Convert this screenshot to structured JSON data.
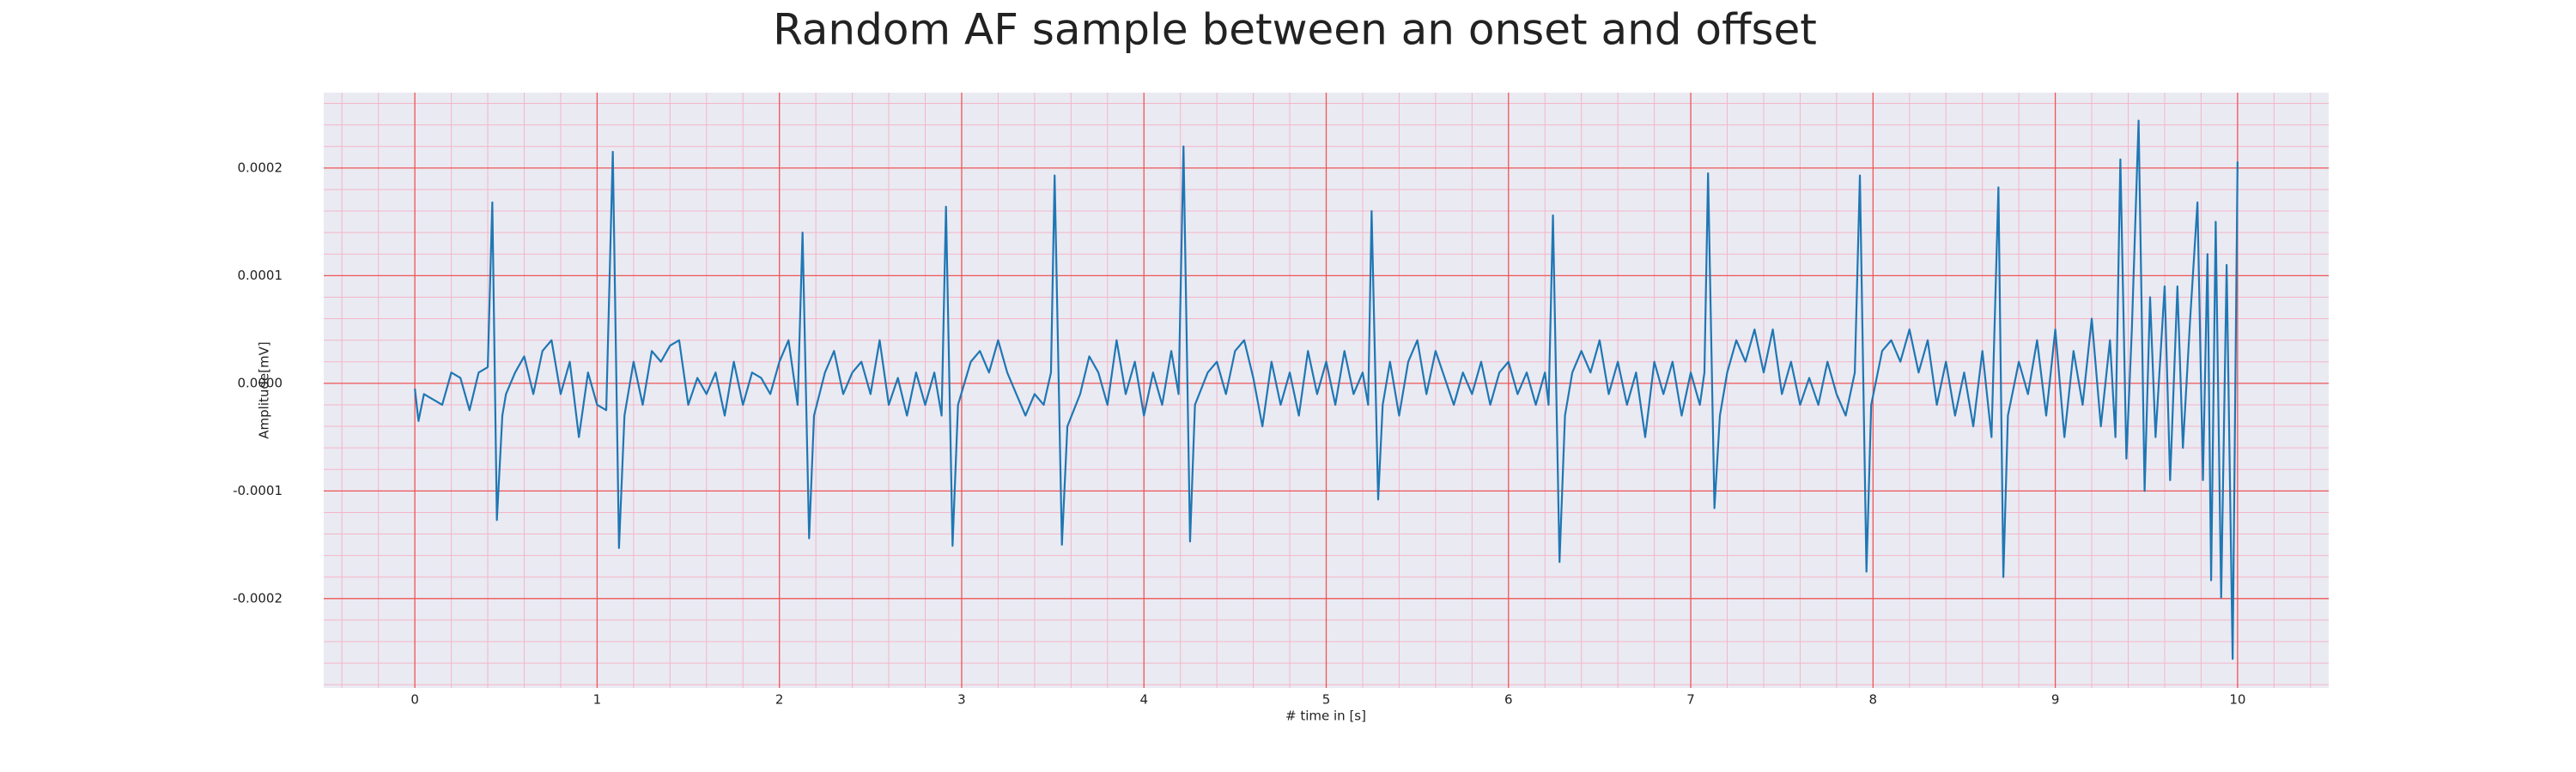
{
  "chart_data": {
    "type": "line",
    "title": "Random AF sample between an onset and offset",
    "xlabel": "# time in [s]",
    "ylabel": "Amplitude[mV]",
    "color": "#1f77b4",
    "grid": true,
    "xlim": [
      -0.5,
      10.5
    ],
    "ylim": [
      -0.000283,
      0.00027
    ],
    "xticks": [
      0,
      1,
      2,
      3,
      4,
      5,
      6,
      7,
      8,
      9,
      10
    ],
    "yticks": [
      -0.0002,
      -0.0001,
      {
        "value": 0,
        "label": "0.0000"
      },
      0.0001,
      0.0002
    ],
    "xminorticks": [
      -0.4,
      -0.2,
      0.2,
      0.4,
      0.6,
      0.8,
      1.2,
      1.4,
      1.6,
      1.8,
      2.2,
      2.4,
      2.6,
      2.8,
      3.2,
      3.4,
      3.6,
      3.8,
      4.2,
      4.4,
      4.6,
      4.8,
      5.2,
      5.4,
      5.6,
      5.8,
      6.2,
      6.4,
      6.6,
      6.8,
      7.2,
      7.4,
      7.6,
      7.8,
      8.2,
      8.4,
      8.6,
      8.8,
      9.2,
      9.4,
      9.6,
      9.8,
      10.2,
      10.4
    ],
    "yminorticks": [
      -0.00028,
      -0.00026,
      -0.00024,
      -0.00022,
      -0.00018,
      -0.00016,
      -0.00014,
      -0.00012,
      -8e-05,
      -6e-05,
      -4e-05,
      -2e-05,
      2e-05,
      4e-05,
      6e-05,
      8e-05,
      0.00012,
      0.00014,
      0.00016,
      0.00018,
      0.00022,
      0.00024,
      0.00026
    ],
    "x": [
      0,
      0.02,
      0.05,
      0.1,
      0.15,
      0.2,
      0.25,
      0.3,
      0.35,
      0.4,
      0.425,
      0.45,
      0.48,
      0.5,
      0.55,
      0.6,
      0.65,
      0.7,
      0.75,
      0.8,
      0.85,
      0.9,
      0.95,
      1.0,
      1.05,
      1.086,
      1.12,
      1.15,
      1.2,
      1.25,
      1.3,
      1.35,
      1.4,
      1.45,
      1.5,
      1.55,
      1.6,
      1.65,
      1.7,
      1.75,
      1.8,
      1.85,
      1.9,
      1.95,
      2.0,
      2.05,
      2.1,
      2.127,
      2.163,
      2.19,
      2.25,
      2.3,
      2.35,
      2.4,
      2.45,
      2.5,
      2.55,
      2.6,
      2.65,
      2.7,
      2.75,
      2.8,
      2.85,
      2.89,
      2.914,
      2.95,
      2.98,
      3.05,
      3.1,
      3.15,
      3.2,
      3.25,
      3.3,
      3.35,
      3.4,
      3.45,
      3.49,
      3.51,
      3.55,
      3.58,
      3.65,
      3.7,
      3.75,
      3.8,
      3.85,
      3.9,
      3.95,
      4.0,
      4.05,
      4.1,
      4.15,
      4.19,
      4.217,
      4.253,
      4.28,
      4.35,
      4.4,
      4.45,
      4.5,
      4.55,
      4.6,
      4.65,
      4.7,
      4.75,
      4.8,
      4.85,
      4.9,
      4.95,
      5.0,
      5.05,
      5.1,
      5.15,
      5.2,
      5.23,
      5.249,
      5.285,
      5.31,
      5.35,
      5.4,
      5.45,
      5.5,
      5.55,
      5.6,
      5.65,
      5.7,
      5.75,
      5.8,
      5.85,
      5.9,
      5.95,
      6.0,
      6.05,
      6.1,
      6.15,
      6.2,
      6.22,
      6.244,
      6.28,
      6.31,
      6.35,
      6.4,
      6.45,
      6.5,
      6.55,
      6.6,
      6.65,
      6.7,
      6.75,
      6.8,
      6.85,
      6.9,
      6.95,
      7.0,
      7.05,
      7.075,
      7.095,
      7.13,
      7.16,
      7.2,
      7.25,
      7.3,
      7.35,
      7.4,
      7.45,
      7.5,
      7.55,
      7.6,
      7.65,
      7.7,
      7.75,
      7.8,
      7.85,
      7.9,
      7.928,
      7.964,
      7.99,
      8.05,
      8.1,
      8.15,
      8.2,
      8.25,
      8.3,
      8.35,
      8.4,
      8.45,
      8.5,
      8.55,
      8.6,
      8.65,
      8.688,
      8.715,
      8.74,
      8.8,
      8.85,
      8.9,
      8.95,
      9.0,
      9.05,
      9.1,
      9.15,
      9.2,
      9.25,
      9.3,
      9.33,
      9.357,
      9.39,
      9.42,
      9.457,
      9.49,
      9.52,
      9.55,
      9.6,
      9.63,
      9.67,
      9.7,
      9.74,
      9.78,
      9.81,
      9.835,
      9.855,
      9.88,
      9.91,
      9.94,
      9.973,
      10.0
    ],
    "values": [
      -5e-06,
      -3.5e-05,
      -1e-05,
      -1.5e-05,
      -2e-05,
      1e-05,
      5e-06,
      -2.5e-05,
      1e-05,
      1.5e-05,
      0.000168,
      -0.000127,
      -3e-05,
      -1e-05,
      1e-05,
      2.5e-05,
      -1e-05,
      3e-05,
      4e-05,
      -1e-05,
      2e-05,
      -5e-05,
      1e-05,
      -2e-05,
      -2.5e-05,
      0.000215,
      -0.000153,
      -3e-05,
      2e-05,
      -2e-05,
      3e-05,
      2e-05,
      3.5e-05,
      4e-05,
      -2e-05,
      5e-06,
      -1e-05,
      1e-05,
      -3e-05,
      2e-05,
      -2e-05,
      1e-05,
      5e-06,
      -1e-05,
      2e-05,
      4e-05,
      -2e-05,
      0.00014,
      -0.000144,
      -3e-05,
      1e-05,
      3e-05,
      -1e-05,
      1e-05,
      2e-05,
      -1e-05,
      4e-05,
      -2e-05,
      5e-06,
      -3e-05,
      1e-05,
      -2e-05,
      1e-05,
      -3e-05,
      0.000164,
      -0.000151,
      -2e-05,
      2e-05,
      3e-05,
      1e-05,
      4e-05,
      1e-05,
      -1e-05,
      -3e-05,
      -1e-05,
      -2e-05,
      1e-05,
      0.000193,
      -0.00015,
      -4e-05,
      -1e-05,
      2.5e-05,
      1e-05,
      -2e-05,
      4e-05,
      -1e-05,
      2e-05,
      -3e-05,
      1e-05,
      -2e-05,
      3e-05,
      -1e-05,
      0.00022,
      -0.000147,
      -2e-05,
      1e-05,
      2e-05,
      -1e-05,
      3e-05,
      4e-05,
      5e-06,
      -4e-05,
      2e-05,
      -2e-05,
      1e-05,
      -3e-05,
      3e-05,
      -1e-05,
      2e-05,
      -2e-05,
      3e-05,
      -1e-05,
      1e-05,
      -2e-05,
      0.00016,
      -0.000108,
      -2e-05,
      2e-05,
      -3e-05,
      2e-05,
      4e-05,
      -1e-05,
      3e-05,
      5e-06,
      -2e-05,
      1e-05,
      -1e-05,
      2e-05,
      -2e-05,
      1e-05,
      2e-05,
      -1e-05,
      1e-05,
      -2e-05,
      1e-05,
      -2e-05,
      0.000156,
      -0.000166,
      -3e-05,
      1e-05,
      3e-05,
      1e-05,
      4e-05,
      -1e-05,
      2e-05,
      -2e-05,
      1e-05,
      -5e-05,
      2e-05,
      -1e-05,
      2e-05,
      -3e-05,
      1e-05,
      -2e-05,
      1e-05,
      0.000195,
      -0.000116,
      -3e-05,
      1e-05,
      4e-05,
      2e-05,
      5e-05,
      1e-05,
      5e-05,
      -1e-05,
      2e-05,
      -2e-05,
      5e-06,
      -2e-05,
      2e-05,
      -1e-05,
      -3e-05,
      1e-05,
      0.000193,
      -0.000175,
      -2e-05,
      3e-05,
      4e-05,
      2e-05,
      5e-05,
      1e-05,
      4e-05,
      -2e-05,
      2e-05,
      -3e-05,
      1e-05,
      -4e-05,
      3e-05,
      -5e-05,
      0.000182,
      -0.00018,
      -3e-05,
      2e-05,
      -1e-05,
      4e-05,
      -3e-05,
      5e-05,
      -5e-05,
      3e-05,
      -2e-05,
      6e-05,
      -4e-05,
      4e-05,
      -5e-05,
      0.000208,
      -7e-05,
      5e-05,
      0.000244,
      -0.0001,
      8e-05,
      -5e-05,
      9e-05,
      -9e-05,
      9e-05,
      -6e-05,
      6e-05,
      0.000168,
      -9e-05,
      0.00012,
      -0.000183,
      0.00015,
      -0.000199,
      0.00011,
      -0.000256,
      0.000206
    ]
  }
}
